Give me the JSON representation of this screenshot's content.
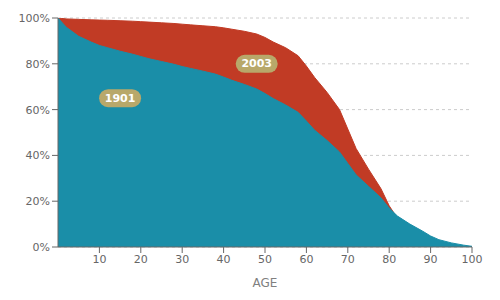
{
  "chart_data": {
    "type": "area",
    "x": [
      0,
      2,
      5,
      8,
      10,
      12,
      15,
      18,
      20,
      22,
      25,
      28,
      30,
      32,
      35,
      38,
      40,
      42,
      45,
      48,
      50,
      52,
      55,
      58,
      60,
      62,
      65,
      68,
      70,
      72,
      75,
      78,
      80,
      82,
      85,
      88,
      90,
      92,
      95,
      98,
      100
    ],
    "series": [
      {
        "name": "2003",
        "color": "#c13b25",
        "values": [
          100,
          99.6,
          99.4,
          99.2,
          99.1,
          99.0,
          98.8,
          98.6,
          98.4,
          98.2,
          97.9,
          97.6,
          97.3,
          97.0,
          96.6,
          96.2,
          95.7,
          95.1,
          94.2,
          93.0,
          91.5,
          89.5,
          87.0,
          83.5,
          79.0,
          74.0,
          67.5,
          60.0,
          51.5,
          43.0,
          34.0,
          25.5,
          18.0,
          12.5,
          7.5,
          4.0,
          2.2,
          1.2,
          0.5,
          0.2,
          0.05
        ]
      },
      {
        "name": "1901",
        "color": "#1a8ea8",
        "values": [
          100,
          96.0,
          92.0,
          89.5,
          88.0,
          87.0,
          85.5,
          84.2,
          83.2,
          82.2,
          81.0,
          79.8,
          78.8,
          78.0,
          76.8,
          75.5,
          74.2,
          72.8,
          71.0,
          69.0,
          67.0,
          64.8,
          62.0,
          58.8,
          55.0,
          51.0,
          46.5,
          41.5,
          36.5,
          31.5,
          26.5,
          21.5,
          17.0,
          13.5,
          10.0,
          7.0,
          4.8,
          3.2,
          1.8,
          0.8,
          0.3
        ]
      }
    ],
    "xlabel": "AGE",
    "xlim": [
      0,
      100
    ],
    "xticks": [
      10,
      20,
      30,
      40,
      50,
      60,
      70,
      80,
      90,
      100
    ],
    "ylim": [
      0,
      100
    ],
    "yticks": [
      {
        "value": 0,
        "label": "0%"
      },
      {
        "value": 20,
        "label": "20%"
      },
      {
        "value": 40,
        "label": "40%"
      },
      {
        "value": 60,
        "label": "60%"
      },
      {
        "value": 80,
        "label": "80%"
      },
      {
        "value": 100,
        "label": "100%"
      }
    ],
    "grid": true,
    "annotations": [
      {
        "text": "1901",
        "x": 15,
        "y": 65
      },
      {
        "text": "2003",
        "x": 48,
        "y": 80
      }
    ]
  }
}
